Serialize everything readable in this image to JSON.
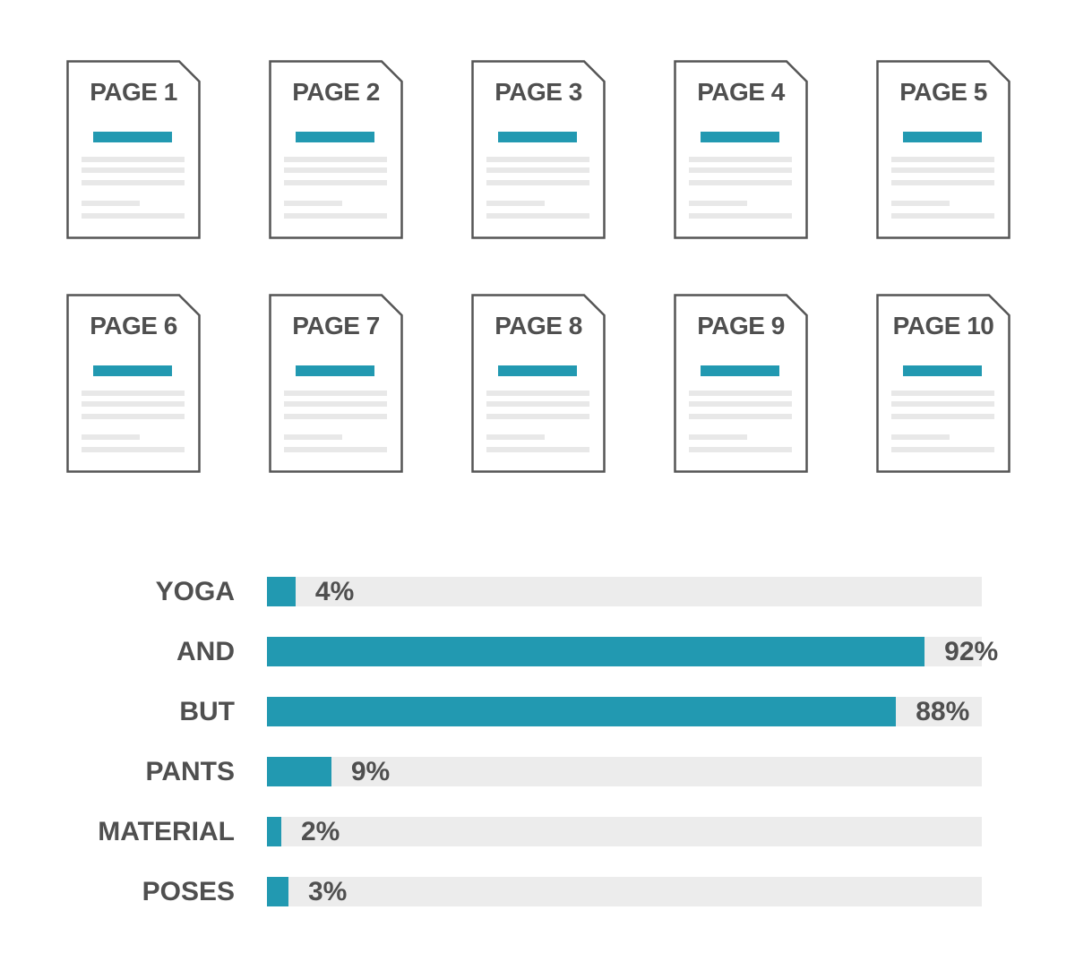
{
  "pages": [
    {
      "label": "PAGE 1"
    },
    {
      "label": "PAGE 2"
    },
    {
      "label": "PAGE 3"
    },
    {
      "label": "PAGE 4"
    },
    {
      "label": "PAGE 5"
    },
    {
      "label": "PAGE 6"
    },
    {
      "label": "PAGE 7"
    },
    {
      "label": "PAGE 8"
    },
    {
      "label": "PAGE 9"
    },
    {
      "label": "PAGE 10"
    }
  ],
  "colors": {
    "accent": "#2299b1",
    "text": "#4f4f4f",
    "track": "#ececec",
    "outline": "#555555",
    "placeholder_line": "#e8e8e8"
  },
  "chart_data": {
    "type": "bar",
    "orientation": "horizontal",
    "categories": [
      "YOGA",
      "AND",
      "BUT",
      "PANTS",
      "MATERIAL",
      "POSES"
    ],
    "values": [
      4,
      92,
      88,
      9,
      2,
      3
    ],
    "value_labels": [
      "4%",
      "92%",
      "88%",
      "9%",
      "2%",
      "3%"
    ],
    "unit": "%",
    "xlim": [
      0,
      100
    ],
    "grid": false,
    "legend": "none"
  }
}
